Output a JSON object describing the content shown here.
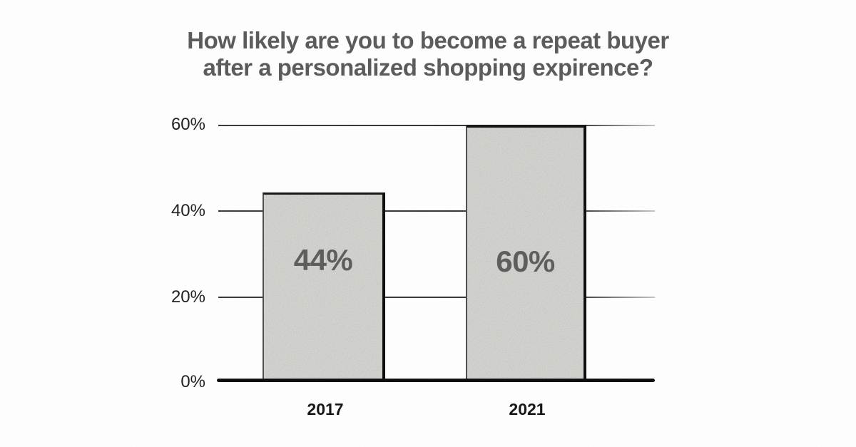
{
  "title": {
    "line1": "How likely are you to become a repeat buyer",
    "line2": "after a personalized shopping expirence?"
  },
  "chart_data": {
    "type": "bar",
    "title": "How likely are you to become a repeat buyer after a personalized shopping expirence?",
    "categories": [
      "2017",
      "2021"
    ],
    "values": [
      44,
      60
    ],
    "value_labels": [
      "44%",
      "60%"
    ],
    "yticks": [
      "0%",
      "20%",
      "40%",
      "60%"
    ],
    "xlabel": "",
    "ylabel": "",
    "ylim": [
      0,
      60
    ],
    "grid": true,
    "legend": "none",
    "colors": {
      "background": "#ffffff",
      "title_text": "#58595b",
      "bar_fill": "#d5d5d0",
      "bar_border": "#0c0c0c",
      "bar_value_text": "#5c5c5c",
      "tick_text": "#1d1d1d",
      "gridline": "#333333",
      "axis_line": "#0b0b0b",
      "category_text": "#121212"
    }
  }
}
